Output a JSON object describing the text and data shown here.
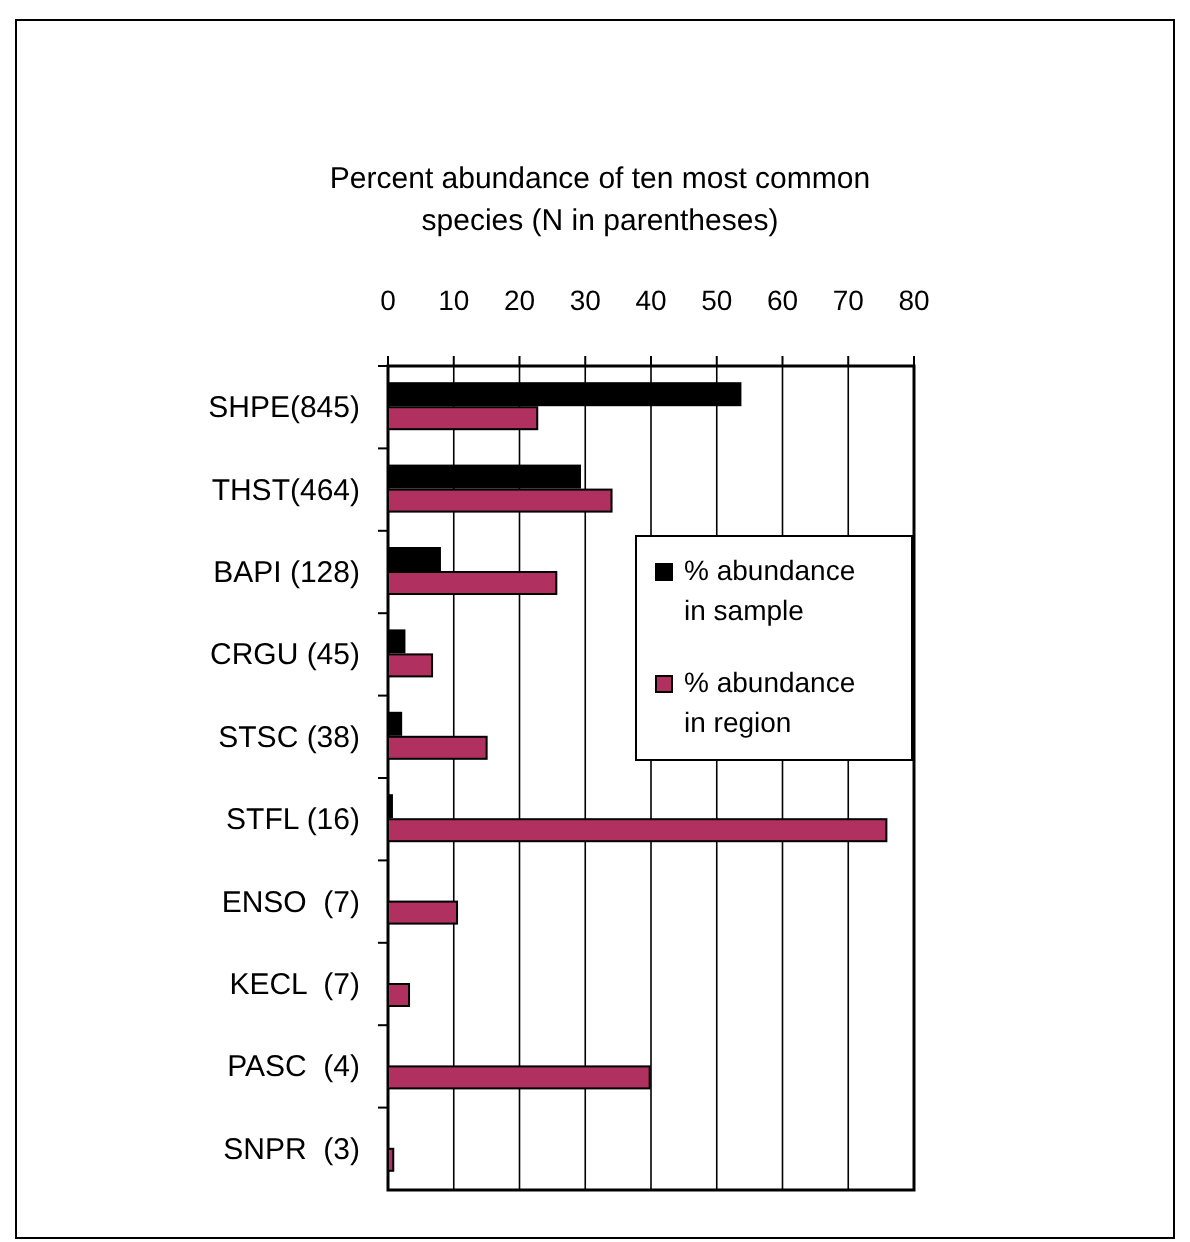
{
  "chart_data": {
    "type": "bar",
    "orientation": "horizontal",
    "title": "Percent abundance of ten most common species (N in parentheses)",
    "categories": [
      "SHPE(845)",
      "THST(464)",
      "BAPI (128)",
      "CRGU (45)",
      "STSC (38)",
      "STFL (16)",
      "ENSO  (7)",
      "KECL  (7)",
      "PASC  (4)",
      "SNPR  (3)"
    ],
    "series": [
      {
        "name": "% abundance in sample",
        "color": "#000000",
        "values": [
          53.6,
          29.2,
          7.9,
          2.5,
          2.0,
          0.6,
          0,
          0,
          0,
          0
        ]
      },
      {
        "name": "% abundance in region",
        "color": "#b03060",
        "values": [
          22.7,
          34,
          25.6,
          6.7,
          15,
          75.8,
          10.5,
          3.2,
          39.8,
          0.8
        ]
      }
    ],
    "xlim": [
      0,
      80
    ],
    "xticks": [
      0,
      10,
      20,
      30,
      40,
      50,
      60,
      70,
      80
    ],
    "grid": "x",
    "legend": "right"
  }
}
